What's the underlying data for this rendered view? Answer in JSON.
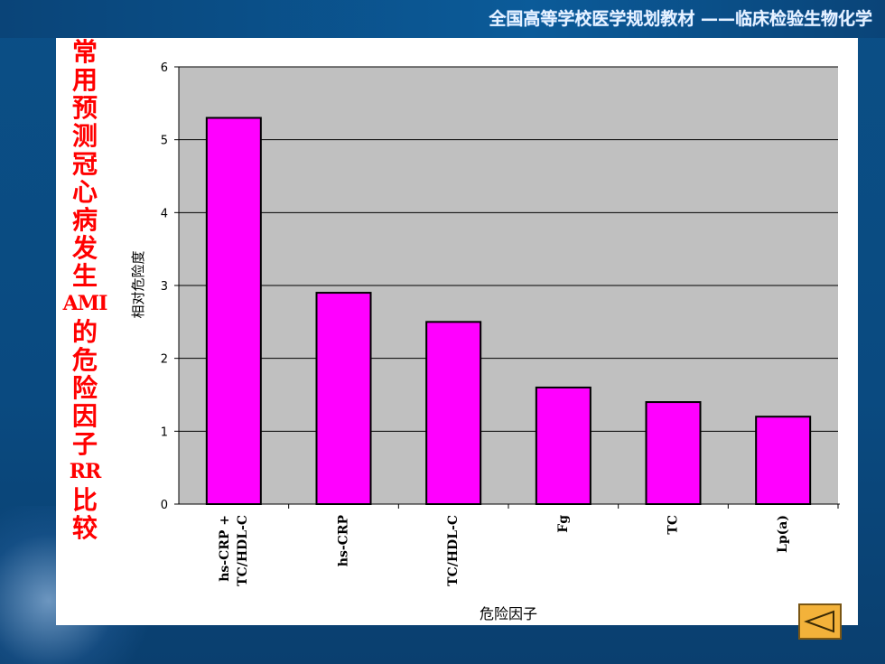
{
  "header": {
    "banner_title": "全国高等学校医学规划教材 ——临床检验生物化学"
  },
  "side_title": "常用预测冠心病发生AMI的危险因子RR比较",
  "colors": {
    "bar_fill": "#ff00ff",
    "plot_bg": "#c0c0c0",
    "side_title": "#ff0000",
    "back_button": "#f3b23a"
  },
  "icons": {
    "back": "triangle-left-icon"
  },
  "chart_data": {
    "type": "bar",
    "categories": [
      "hs-CRP + TC/HDL-C",
      "hs-CRP",
      "TC/HDL-C",
      "Fg",
      "TC",
      "Lp(a)"
    ],
    "values": [
      5.3,
      2.9,
      2.5,
      1.6,
      1.4,
      1.2
    ],
    "title": "",
    "xlabel": "危险因子",
    "ylabel": "相对危险度",
    "ylim": [
      0,
      6
    ],
    "yticks": [
      "0",
      "1",
      "2",
      "3",
      "4",
      "5",
      "6"
    ],
    "grid": true
  }
}
